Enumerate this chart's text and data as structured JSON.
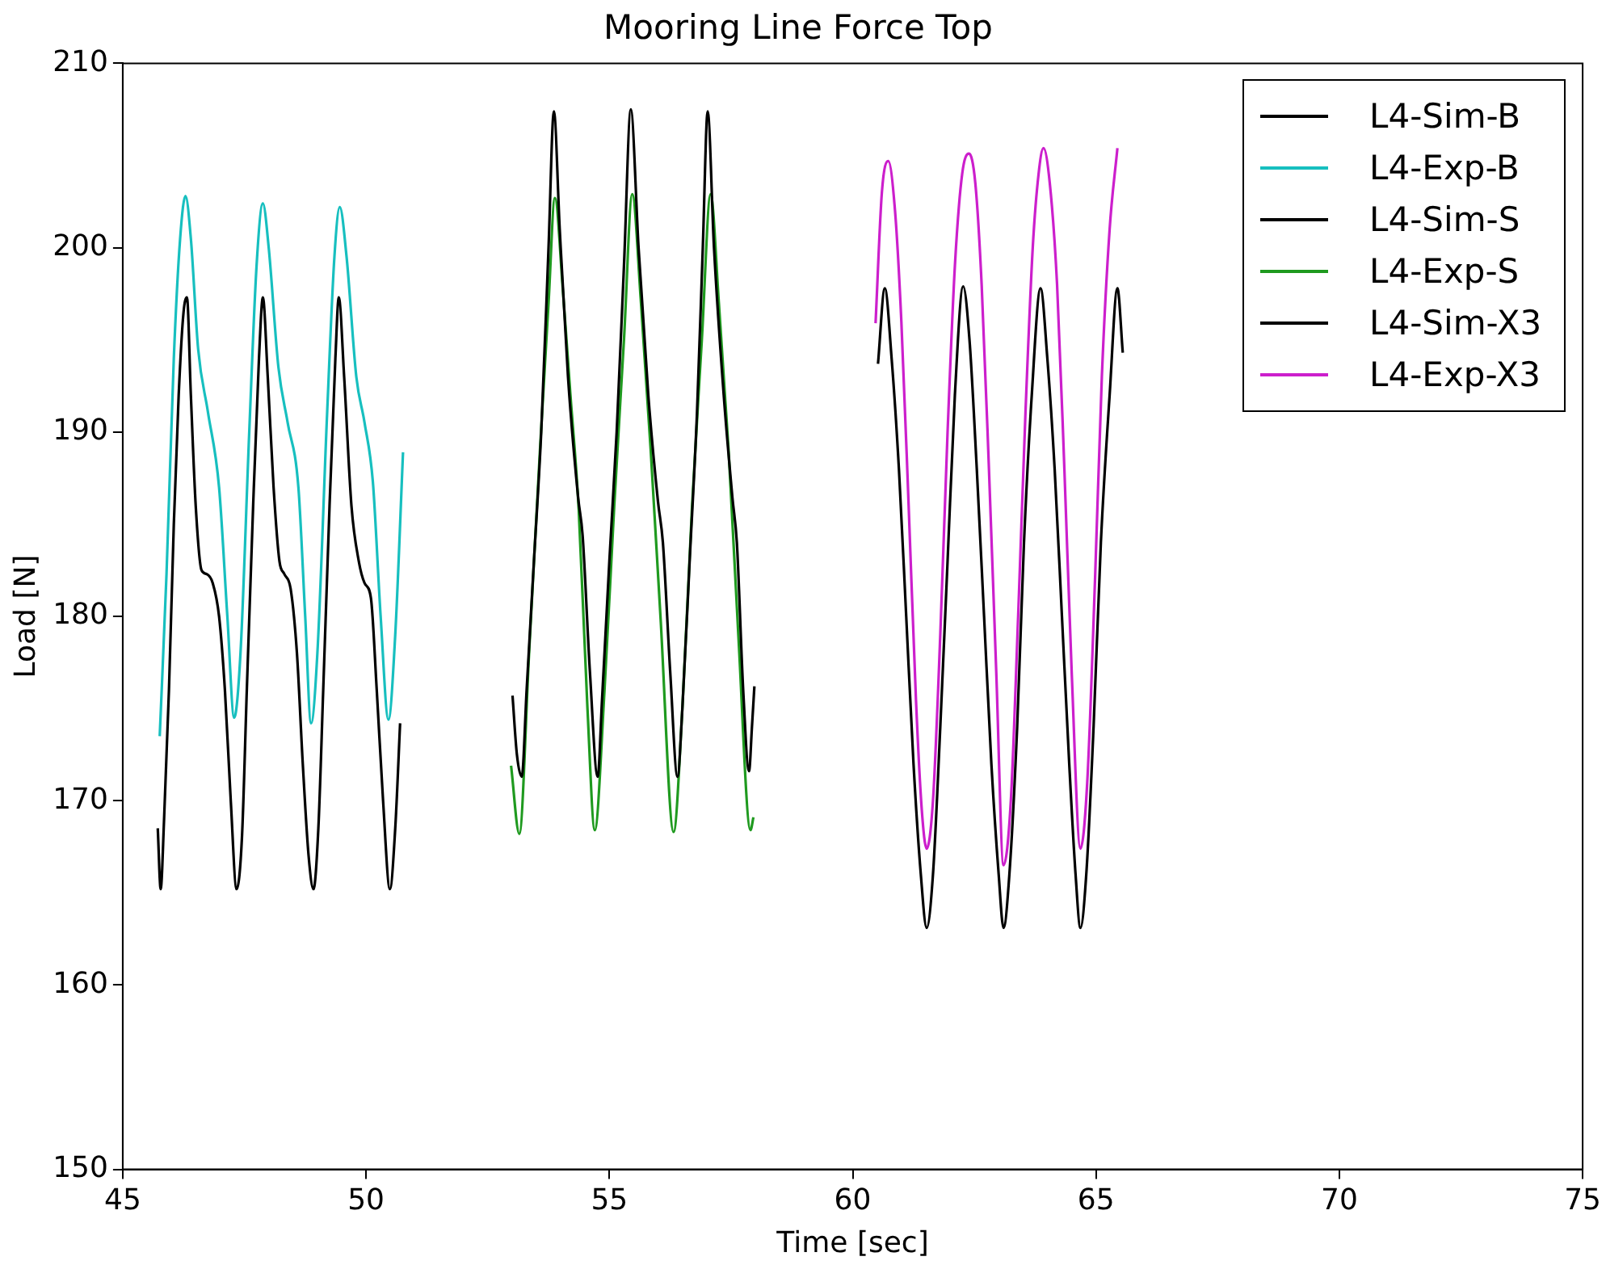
{
  "chart_data": {
    "type": "line",
    "title": "Mooring Line Force Top",
    "xlabel": "Time [sec]",
    "ylabel": "Load [N]",
    "xlim": [
      45,
      75
    ],
    "xticks": [
      45,
      50,
      55,
      60,
      65,
      70,
      75
    ],
    "ylim": [
      150,
      210
    ],
    "yticks": [
      150,
      160,
      170,
      180,
      190,
      200,
      210
    ],
    "grid": false,
    "legend": "top right",
    "marker": "none",
    "line_style": "solid",
    "series": [
      {
        "name": "L4-Sim-B",
        "color": "#000000",
        "x": [
          45.72,
          45.78,
          45.85,
          45.95,
          46.05,
          46.15,
          46.25,
          46.32,
          46.4,
          46.5,
          46.62,
          46.72,
          46.85,
          46.98,
          47.1,
          47.22,
          47.34,
          47.45,
          47.55,
          47.68,
          47.8,
          47.88,
          47.98,
          48.1,
          48.22,
          48.32,
          48.45,
          48.58,
          48.7,
          48.82,
          48.92,
          49.02,
          49.12,
          49.25,
          49.37,
          49.44,
          49.55,
          49.7,
          49.85,
          49.97,
          50.1,
          50.22,
          50.35,
          50.49,
          50.6,
          50.7
        ],
        "values": [
          168.5,
          165.2,
          169,
          176,
          185,
          192,
          196.5,
          197.3,
          192,
          186,
          182.5,
          182.3,
          181.8,
          180,
          176,
          170,
          165.2,
          168,
          176,
          186,
          194,
          197.3,
          193,
          187,
          183,
          182.3,
          181.5,
          178,
          172,
          167,
          165.2,
          168.5,
          176,
          186,
          194,
          197.3,
          193,
          186,
          183,
          181.8,
          181,
          176,
          170,
          165.2,
          168.5,
          174.2
        ]
      },
      {
        "name": "L4-Exp-B",
        "color": "#17bfbf",
        "x": [
          45.76,
          45.9,
          46.05,
          46.18,
          46.29,
          46.4,
          46.55,
          46.75,
          46.98,
          47.15,
          47.29,
          47.42,
          47.6,
          47.75,
          47.88,
          48.0,
          48.2,
          48.39,
          48.61,
          48.75,
          48.87,
          49.0,
          49.2,
          49.35,
          49.46,
          49.6,
          49.8,
          49.97,
          50.14,
          50.3,
          50.46,
          50.6,
          50.76
        ],
        "values": [
          173.5,
          182.3,
          194,
          200.5,
          202.8,
          200.5,
          194.5,
          191.1,
          187,
          180,
          174.5,
          178,
          190,
          199,
          202.4,
          200,
          193.5,
          190.5,
          187,
          180,
          174.2,
          178,
          191,
          199.5,
          202.2,
          199.5,
          193,
          190.5,
          187.3,
          180,
          174.4,
          179,
          188.9
        ]
      },
      {
        "name": "L4-Sim-S",
        "color": "#000000",
        "x": [
          53.01,
          53.1,
          53.2,
          53.3,
          53.45,
          53.6,
          53.75,
          53.86,
          53.98,
          54.15,
          54.36,
          54.45,
          54.6,
          54.76,
          54.85,
          55.0,
          55.15,
          55.3,
          55.44,
          55.6,
          55.8,
          56.0,
          56.1,
          56.25,
          56.4,
          56.5,
          56.65,
          56.8,
          56.92,
          57.02,
          57.15,
          57.35,
          57.53,
          57.62,
          57.75,
          57.87,
          57.93,
          57.98
        ],
        "values": [
          175.7,
          172.5,
          171.3,
          176,
          183,
          190,
          200,
          207.4,
          201,
          193,
          186.4,
          184.4,
          177,
          171.3,
          175.5,
          183,
          190,
          199,
          207.5,
          200,
          192,
          186.2,
          184,
          177,
          171.3,
          175,
          183,
          191,
          200,
          207.4,
          200,
          192,
          186.4,
          184,
          176,
          171.6,
          174,
          176.2
        ]
      },
      {
        "name": "L4-Exp-S",
        "color": "#1f9a1f",
        "x": [
          52.98,
          53.15,
          53.35,
          53.58,
          53.75,
          53.88,
          54.05,
          54.2,
          54.37,
          54.55,
          54.7,
          54.9,
          55.1,
          55.3,
          55.47,
          55.65,
          55.85,
          56.05,
          56.32,
          56.5,
          56.7,
          56.9,
          57.08,
          57.25,
          57.45,
          57.65,
          57.9,
          57.96
        ],
        "values": [
          171.9,
          168.2,
          178,
          189.3,
          197,
          202.7,
          197.5,
          192,
          185.8,
          175,
          168.4,
          176,
          186,
          195,
          202.9,
          197,
          189,
          180,
          168.3,
          175,
          186,
          195,
          202.9,
          197,
          189,
          179,
          168.4,
          169.1
        ]
      },
      {
        "name": "L4-Sim-X3",
        "color": "#000000",
        "x": [
          60.52,
          60.66,
          60.8,
          60.95,
          61.1,
          61.25,
          61.4,
          61.52,
          61.65,
          61.8,
          61.95,
          62.1,
          62.27,
          62.4,
          62.55,
          62.7,
          62.85,
          63.0,
          63.1,
          63.22,
          63.38,
          63.52,
          63.68,
          63.86,
          64.0,
          64.15,
          64.3,
          64.45,
          64.58,
          64.68,
          64.8,
          64.95,
          65.1,
          65.28,
          65.44,
          65.55
        ],
        "values": [
          193.7,
          197.8,
          194,
          188,
          180,
          172,
          166,
          163.1,
          166,
          174,
          183,
          192,
          197.9,
          195,
          188,
          180,
          172,
          166,
          163.1,
          166,
          174,
          184,
          192,
          197.8,
          194,
          188,
          180,
          172,
          166,
          163.1,
          166,
          174,
          184,
          192,
          197.8,
          194.3
        ]
      },
      {
        "name": "L4-Exp-X3",
        "color": "#cc1fcc",
        "x": [
          60.47,
          60.6,
          60.73,
          60.87,
          61.0,
          61.15,
          61.3,
          61.42,
          61.52,
          61.65,
          61.8,
          61.95,
          62.1,
          62.25,
          62.39,
          62.52,
          62.65,
          62.8,
          62.95,
          63.1,
          63.25,
          63.4,
          63.55,
          63.7,
          63.82,
          63.92,
          64.05,
          64.2,
          64.35,
          64.5,
          64.68,
          64.82,
          64.98,
          65.12,
          65.28,
          65.44
        ],
        "values": [
          195.9,
          203,
          204.7,
          202,
          196,
          186,
          175.5,
          169.5,
          167.4,
          170,
          179,
          190,
          199,
          204,
          205.1,
          203.5,
          198,
          188,
          177,
          166.5,
          170,
          180,
          191,
          200,
          204,
          205.4,
          203.5,
          198,
          188,
          177,
          167.4,
          171,
          182,
          193,
          201,
          205.4
        ]
      }
    ]
  }
}
